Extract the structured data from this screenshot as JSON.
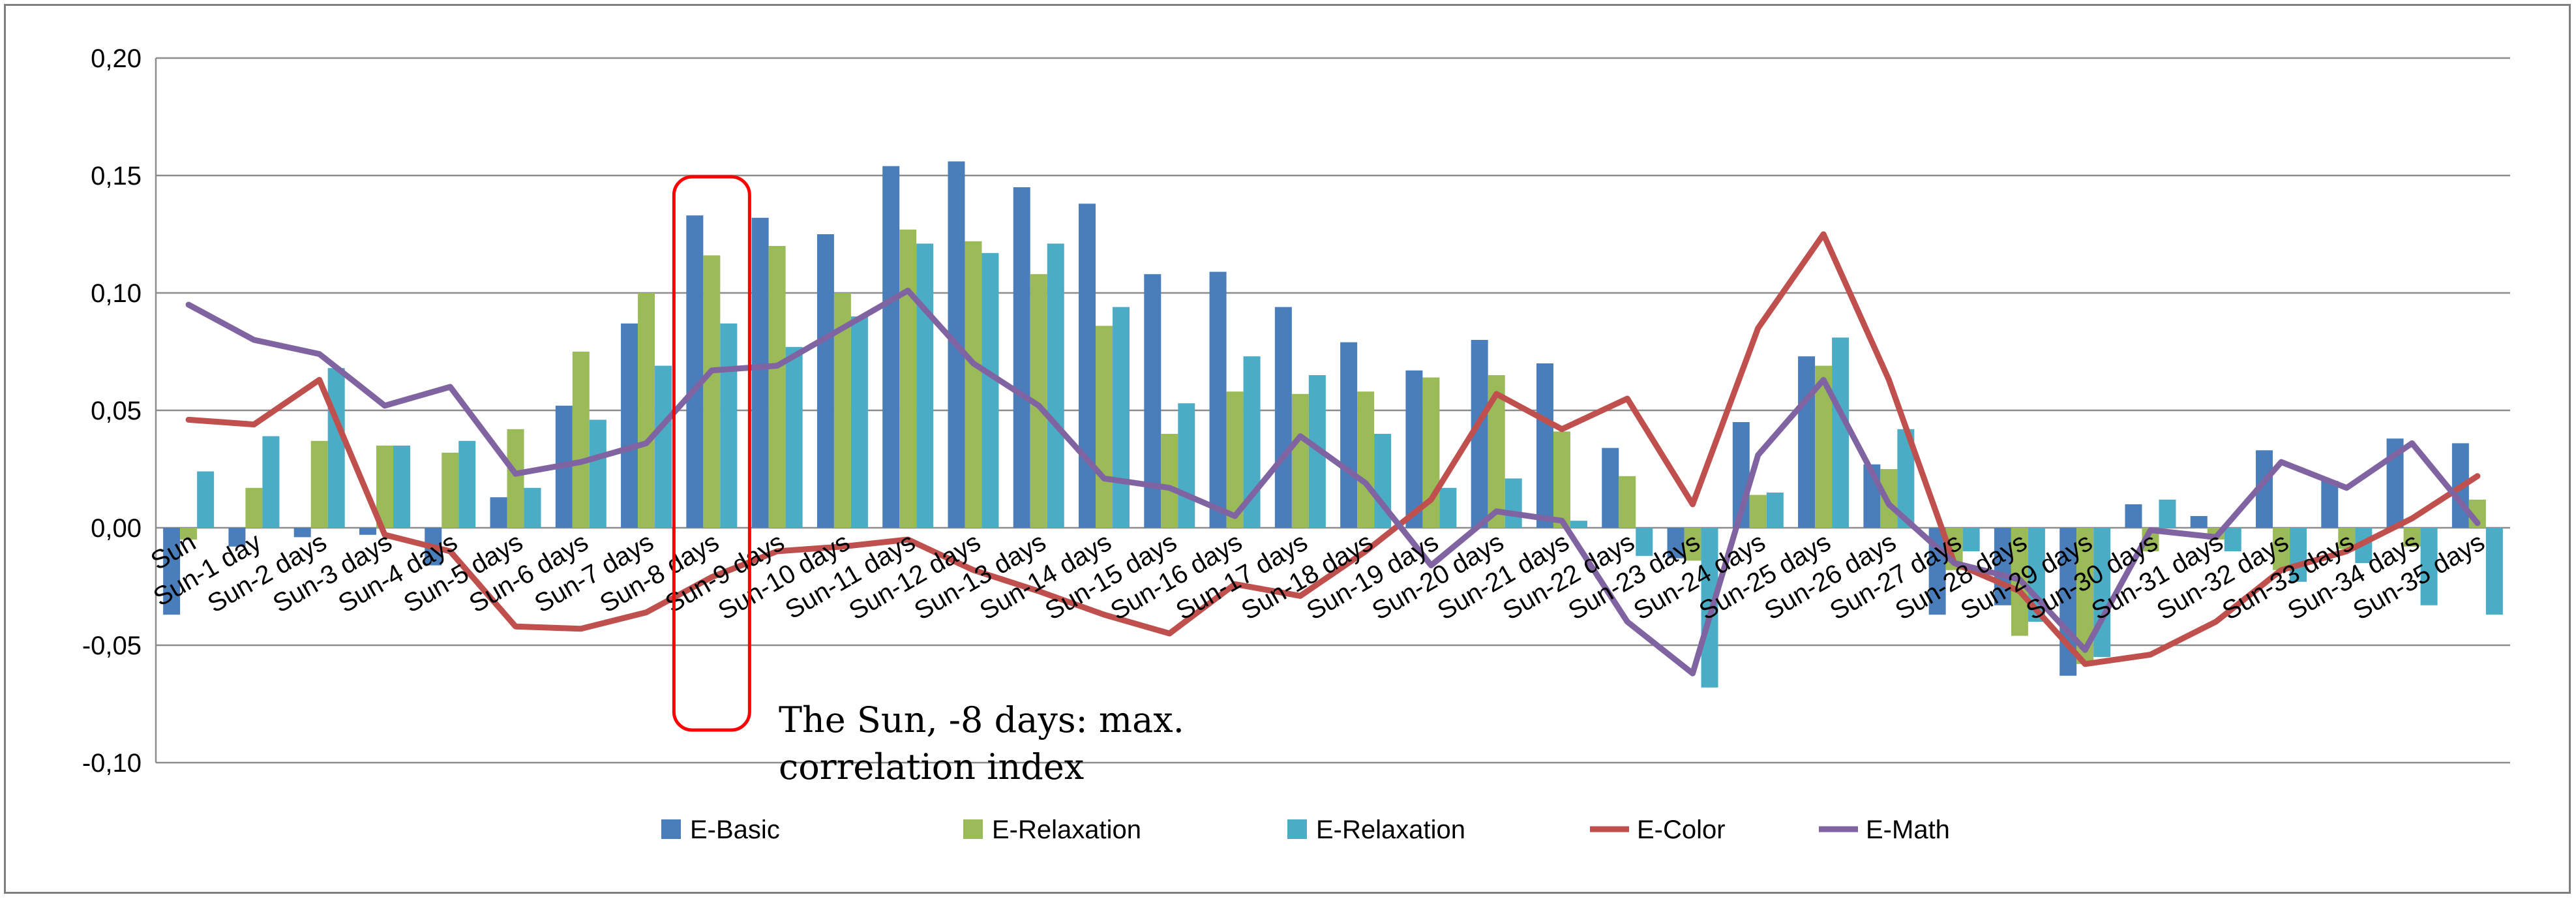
{
  "chart_data": {
    "type": "bar",
    "title": "",
    "xlabel": "",
    "ylabel": "",
    "ylim": [
      -0.1,
      0.2
    ],
    "yticks": [
      -0.1,
      -0.05,
      0.0,
      0.05,
      0.1,
      0.15,
      0.2
    ],
    "ytick_labels": [
      "-0,10",
      "-0,05",
      "0,00",
      "0,05",
      "0,10",
      "0,15",
      "0,20"
    ],
    "grid": true,
    "legend_position": "bottom",
    "categories": [
      "Sun",
      "Sun-1 day",
      "Sun-2 days",
      "Sun-3 days",
      "Sun-4 days",
      "Sun-5 days",
      "Sun-6 days",
      "Sun-7 days",
      "Sun-8 days",
      "Sun-9 days",
      "Sun-10 days",
      "Sun-11 days",
      "Sun-12 days",
      "Sun-13 days",
      "Sun-14 days",
      "Sun-15 days",
      "Sun-16 days",
      "Sun-17 days",
      "Sun-18 days",
      "Sun-19 days",
      "Sun-20 days",
      "Sun-21 days",
      "Sun-22 days",
      "Sun-23 days",
      "Sun-24 days",
      "Sun-25 days",
      "Sun-26 days",
      "Sun-27 days",
      "Sun-28 days",
      "Sun-29 days",
      "Sun-30 days",
      "Sun-31 days",
      "Sun-32 days",
      "Sun-33 days",
      "Sun-34 days",
      "Sun-35 days"
    ],
    "series": [
      {
        "name": "E-Basic",
        "kind": "bar",
        "color": "#4a7ebb",
        "values": [
          -0.037,
          -0.008,
          -0.004,
          -0.003,
          -0.016,
          0.013,
          0.052,
          0.087,
          0.133,
          0.132,
          0.125,
          0.154,
          0.156,
          0.145,
          0.138,
          0.108,
          0.109,
          0.094,
          0.079,
          0.067,
          0.08,
          0.07,
          0.034,
          -0.013,
          0.045,
          0.073,
          0.027,
          -0.037,
          -0.033,
          -0.063,
          0.01,
          0.005,
          0.033,
          0.02,
          0.038,
          0.036
        ]
      },
      {
        "name": "E-Relaxation",
        "kind": "bar",
        "color": "#9bbb59",
        "values": [
          -0.005,
          0.017,
          0.037,
          0.035,
          0.032,
          0.042,
          0.075,
          0.1,
          0.116,
          0.12,
          0.1,
          0.127,
          0.122,
          0.108,
          0.086,
          0.04,
          0.058,
          0.057,
          0.058,
          0.064,
          0.065,
          0.041,
          0.022,
          -0.014,
          0.014,
          0.069,
          0.025,
          -0.018,
          -0.046,
          -0.058,
          -0.01,
          -0.005,
          -0.018,
          -0.009,
          -0.008,
          0.012
        ]
      },
      {
        "name": "E-Relaxation",
        "kind": "bar",
        "color": "#4bacc6",
        "values": [
          0.024,
          0.039,
          0.068,
          0.035,
          0.037,
          0.017,
          0.046,
          0.069,
          0.087,
          0.077,
          0.09,
          0.121,
          0.117,
          0.121,
          0.094,
          0.053,
          0.073,
          0.065,
          0.04,
          0.017,
          0.021,
          0.003,
          -0.012,
          -0.068,
          0.015,
          0.081,
          0.042,
          -0.01,
          -0.04,
          -0.055,
          0.012,
          -0.01,
          -0.023,
          -0.015,
          -0.033,
          -0.037
        ]
      },
      {
        "name": "E-Color",
        "kind": "line",
        "color": "#c0504d",
        "values": [
          0.046,
          0.044,
          0.063,
          -0.003,
          -0.01,
          -0.042,
          -0.043,
          -0.036,
          -0.021,
          -0.01,
          -0.008,
          -0.005,
          -0.018,
          -0.027,
          -0.037,
          -0.045,
          -0.024,
          -0.029,
          -0.01,
          0.012,
          0.057,
          0.042,
          0.055,
          0.01,
          0.085,
          0.125,
          0.063,
          -0.015,
          -0.027,
          -0.058,
          -0.054,
          -0.04,
          -0.018,
          -0.01,
          0.004,
          0.022
        ]
      },
      {
        "name": "E-Math",
        "kind": "line",
        "color": "#8064a2",
        "values": [
          0.095,
          0.08,
          0.074,
          0.052,
          0.06,
          0.023,
          0.028,
          0.036,
          0.067,
          0.069,
          0.085,
          0.101,
          0.07,
          0.052,
          0.021,
          0.017,
          0.005,
          0.039,
          0.019,
          -0.016,
          0.007,
          0.003,
          -0.04,
          -0.062,
          0.031,
          0.063,
          0.01,
          -0.015,
          -0.022,
          -0.052,
          -0.001,
          -0.004,
          0.028,
          0.017,
          0.036,
          0.002
        ]
      }
    ],
    "annotation": {
      "category": "Sun-8 days",
      "lines": [
        "The Sun, -8 days: max.",
        "correlation index"
      ],
      "box_color": "#ff0000"
    }
  }
}
